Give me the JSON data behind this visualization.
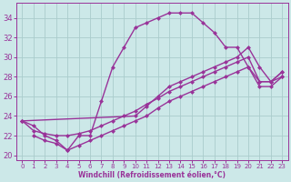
{
  "background_color": "#cce8e8",
  "grid_color": "#aacccc",
  "line_color": "#993399",
  "marker": "D",
  "markersize": 2.5,
  "linewidth": 1.0,
  "title": "Windchill (Refroidissement éolien,°C)",
  "xlim": [
    -0.5,
    23.5
  ],
  "ylim": [
    19.5,
    35.5
  ],
  "yticks": [
    20,
    22,
    24,
    26,
    28,
    30,
    32,
    34
  ],
  "xticks": [
    0,
    1,
    2,
    3,
    4,
    5,
    6,
    7,
    8,
    9,
    10,
    11,
    12,
    13,
    14,
    15,
    16,
    17,
    18,
    19,
    20,
    21,
    22,
    23
  ],
  "series": [
    {
      "x": [
        0,
        1,
        2,
        3,
        4,
        5,
        6,
        7,
        8,
        9,
        10,
        11,
        12,
        13,
        14,
        15,
        16,
        17,
        18,
        19,
        20,
        21,
        22,
        23
      ],
      "y": [
        23.5,
        23.0,
        22.0,
        21.5,
        20.5,
        22.0,
        22.0,
        25.5,
        29.0,
        31.0,
        33.0,
        33.5,
        34.0,
        34.5,
        34.5,
        34.5,
        33.5,
        32.5,
        31.0,
        31.0,
        29.0,
        27.5,
        27.5,
        28.5
      ]
    },
    {
      "x": [
        0,
        10,
        11,
        12,
        13,
        14,
        15,
        16,
        17,
        18,
        19,
        20,
        21,
        22,
        23
      ],
      "y": [
        23.5,
        24.0,
        25.0,
        26.0,
        27.0,
        27.5,
        28.0,
        28.5,
        29.0,
        29.5,
        30.0,
        31.0,
        29.0,
        27.5,
        28.5
      ]
    },
    {
      "x": [
        0,
        1,
        2,
        3,
        4,
        5,
        6,
        7,
        8,
        9,
        10,
        11,
        12,
        13,
        14,
        15,
        16,
        17,
        18,
        19,
        20,
        21,
        22,
        23
      ],
      "y": [
        23.5,
        22.5,
        22.2,
        22.0,
        22.0,
        22.2,
        22.5,
        23.0,
        23.5,
        24.0,
        24.5,
        25.2,
        25.8,
        26.5,
        27.0,
        27.5,
        28.0,
        28.5,
        29.0,
        29.5,
        30.0,
        27.5,
        27.5,
        28.0
      ]
    },
    {
      "x": [
        1,
        2,
        3,
        4,
        5,
        6,
        7,
        8,
        9,
        10,
        11,
        12,
        13,
        14,
        15,
        16,
        17,
        18,
        19,
        20,
        21,
        22,
        23
      ],
      "y": [
        22.0,
        21.5,
        21.2,
        20.5,
        21.0,
        21.5,
        22.0,
        22.5,
        23.0,
        23.5,
        24.0,
        24.8,
        25.5,
        26.0,
        26.5,
        27.0,
        27.5,
        28.0,
        28.5,
        29.0,
        27.0,
        27.0,
        28.0
      ]
    }
  ]
}
